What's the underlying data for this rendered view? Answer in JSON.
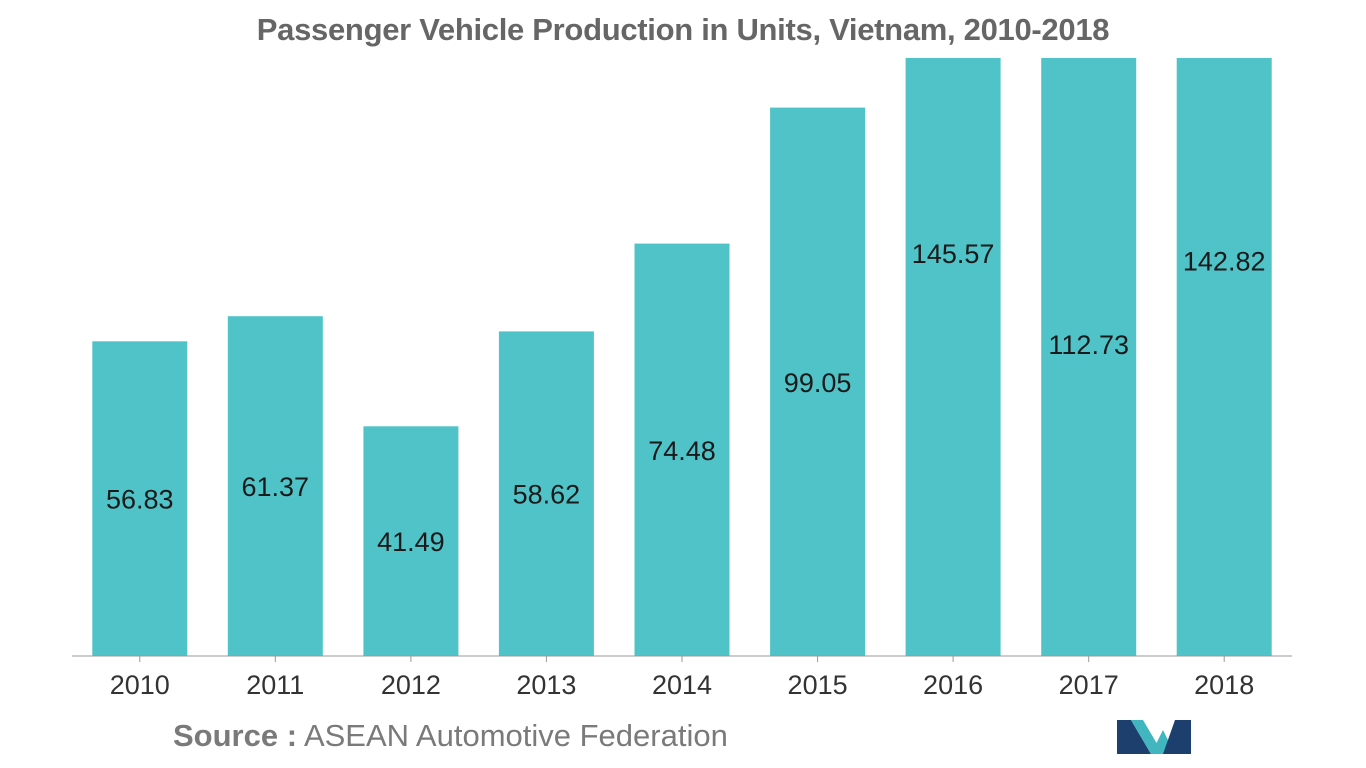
{
  "source": {
    "label": "Source :",
    "text": "ASEAN Automotive Federation"
  },
  "colors": {
    "bar": "#50c3c8",
    "title": "#666666",
    "label": "#1a1a1a",
    "tick": "#333333",
    "axis": "#999999",
    "logo_dark": "#1c3f6e",
    "logo_light": "#42b6bf"
  },
  "chart_data": {
    "type": "bar",
    "title": "Passenger Vehicle Production in Units, Vietnam, 2010-2018",
    "xlabel": "",
    "ylabel": "",
    "categories": [
      "2010",
      "2011",
      "2012",
      "2013",
      "2014",
      "2015",
      "2016",
      "2017",
      "2018"
    ],
    "values": [
      56.83,
      61.37,
      41.49,
      58.62,
      74.48,
      99.05,
      145.57,
      112.73,
      142.82
    ],
    "data_labels": [
      "56.83",
      "61.37",
      "41.49",
      "58.62",
      "74.48",
      "99.05",
      "145.57",
      "112.73",
      "142.82"
    ],
    "ylim": [
      0,
      108
    ],
    "grid": false,
    "legend": "none"
  }
}
